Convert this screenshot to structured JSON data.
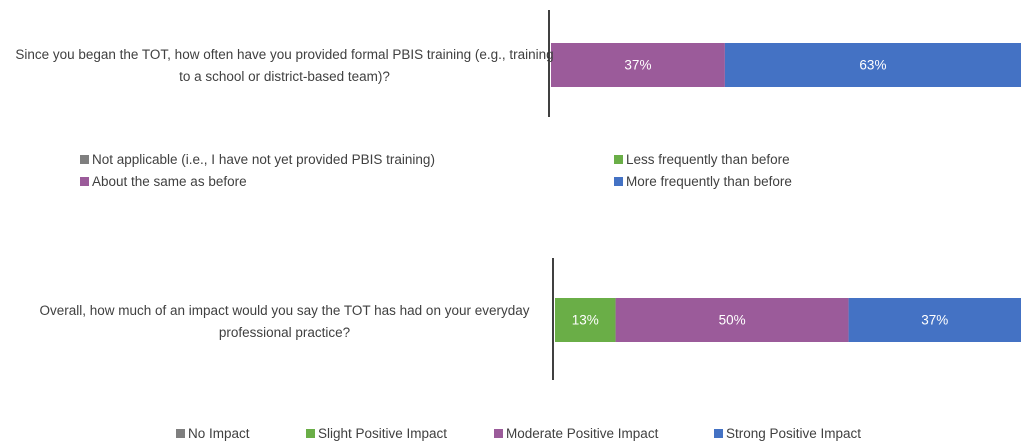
{
  "charts": [
    {
      "chart_data": {
        "type": "bar",
        "orientation": "horizontal",
        "stacked": true,
        "categories": [
          "Since you began the TOT, how often have you provided formal PBIS training (e.g., training to a school or district-based team)?"
        ],
        "series": [
          {
            "name": "Not applicable (i.e., I have not yet provided PBIS training)",
            "color": "#7f7f7f",
            "values": [
              0
            ]
          },
          {
            "name": "Less frequently than before",
            "color": "#6aae47",
            "values": [
              0
            ]
          },
          {
            "name": "About the same as before",
            "color": "#9b5b9a",
            "values": [
              37
            ],
            "value_labels": [
              "37%"
            ]
          },
          {
            "name": "More frequently than before",
            "color": "#4472c4",
            "values": [
              63
            ],
            "value_labels": [
              "63%"
            ]
          }
        ]
      }
    },
    {
      "chart_data": {
        "type": "bar",
        "orientation": "horizontal",
        "stacked": true,
        "categories": [
          "Overall, how much of an impact would you say the TOT has had on your everyday professional practice?"
        ],
        "series": [
          {
            "name": "No Impact",
            "color": "#7f7f7f",
            "values": [
              0
            ]
          },
          {
            "name": "Slight Positive Impact",
            "color": "#6aae47",
            "values": [
              13
            ],
            "value_labels": [
              "13%"
            ]
          },
          {
            "name": "Moderate Positive Impact",
            "color": "#9b5b9a",
            "values": [
              50
            ],
            "value_labels": [
              "50%"
            ]
          },
          {
            "name": "Strong Positive Impact",
            "color": "#4472c4",
            "values": [
              37
            ],
            "value_labels": [
              "37%"
            ]
          }
        ]
      }
    }
  ]
}
